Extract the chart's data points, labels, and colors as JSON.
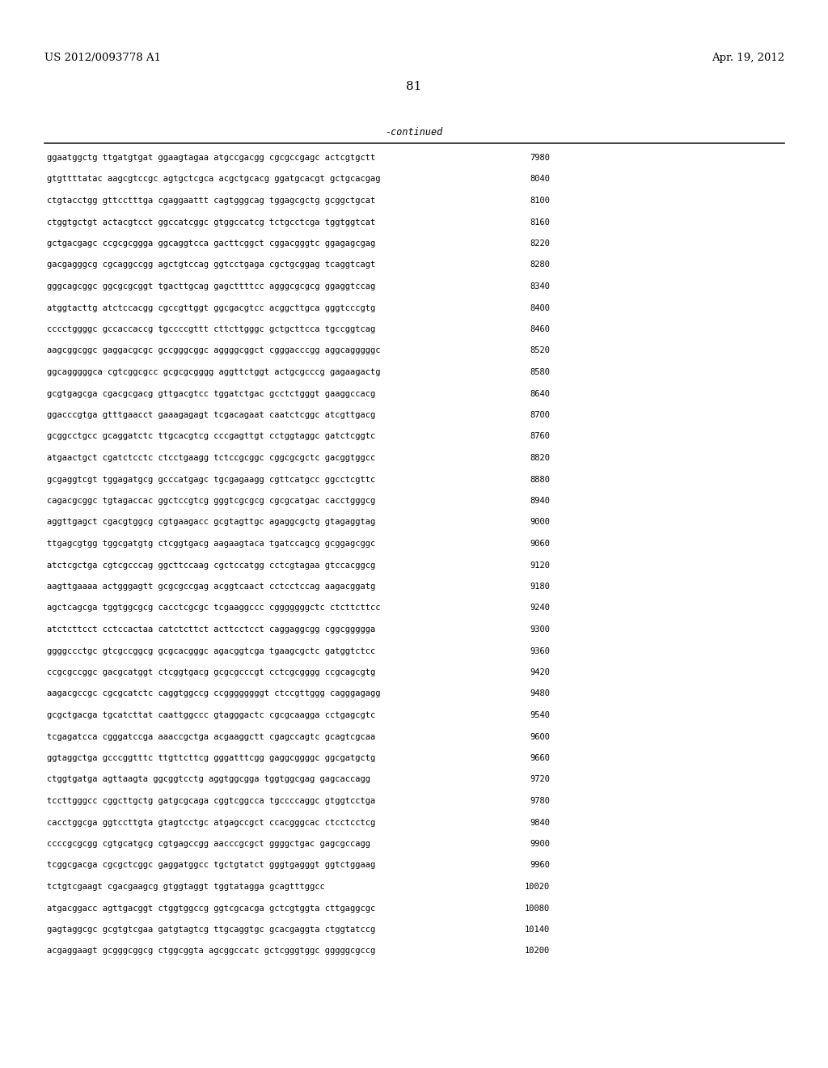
{
  "header_left": "US 2012/0093778 A1",
  "header_right": "Apr. 19, 2012",
  "page_number": "81",
  "continued_label": "-continued",
  "background_color": "#ffffff",
  "text_color": "#000000",
  "font_size": 7.5,
  "header_font_size": 9.5,
  "page_num_font_size": 11,
  "sequences": [
    [
      "ggaatggctg ttgatgtgat ggaagtagaa atgccgacgg cgcgccgagc actcgtgctt",
      "7980"
    ],
    [
      "gtgttttatac aagcgtccgc agtgctcgca acgctgcacg ggatgcacgt gctgcacgag",
      "8040"
    ],
    [
      "ctgtacctgg gttcctttga cgaggaattt cagtgggcag tggagcgctg gcggctgcat",
      "8100"
    ],
    [
      "ctggtgctgt actacgtcct ggccatcggc gtggccatcg tctgcctcga tggtggtcat",
      "8160"
    ],
    [
      "gctgacgagc ccgcgcggga ggcaggtcca gacttcggct cggacgggtc ggagagcgag",
      "8220"
    ],
    [
      "gacgagggcg cgcaggccgg agctgtccag ggtcctgaga cgctgcggag tcaggtcagt",
      "8280"
    ],
    [
      "gggcagcggc ggcgcgcggt tgacttgcag gagcttttcc agggcgcgcg ggaggtccag",
      "8340"
    ],
    [
      "atggtacttg atctccacgg cgccgttggt ggcgacgtcc acggcttgca gggtcccgtg",
      "8400"
    ],
    [
      "cccctggggc gccaccaccg tgccccgttt cttcttgggc gctgcttcca tgccggtcag",
      "8460"
    ],
    [
      "aagcggcggc gaggacgcgc gccgggcggc aggggcggct cgggacccgg aggcagggggc",
      "8520"
    ],
    [
      "ggcagggggca cgtcggcgcc gcgcgcgggg aggttctggt actgcgcccg gagaagactg",
      "8580"
    ],
    [
      "gcgtgagcga cgacgcgacg gttgacgtcc tggatctgac gcctctgggt gaaggccacg",
      "8640"
    ],
    [
      "ggacccgtga gtttgaacct gaaagagagt tcgacagaat caatctcggc atcgttgacg",
      "8700"
    ],
    [
      "gcggcctgcc gcaggatctc ttgcacgtcg cccgagttgt cctggtaggc gatctcggtc",
      "8760"
    ],
    [
      "atgaactgct cgatctcctc ctcctgaagg tctccgcggc cggcgcgctc gacggtggcc",
      "8820"
    ],
    [
      "gcgaggtcgt tggagatgcg gcccatgagc tgcgagaagg cgttcatgcc ggcctcgttc",
      "8880"
    ],
    [
      "cagacgcggc tgtagaccac ggctccgtcg gggtcgcgcg cgcgcatgac cacctgggcg",
      "8940"
    ],
    [
      "aggttgagct cgacgtggcg cgtgaagacc gcgtagttgc agaggcgctg gtagaggtag",
      "9000"
    ],
    [
      "ttgagcgtgg tggcgatgtg ctcggtgacg aagaagtaca tgatccagcg gcggagcggc",
      "9060"
    ],
    [
      "atctcgctga cgtcgcccag ggcttccaag cgctccatgg cctcgtagaa gtccacggcg",
      "9120"
    ],
    [
      "aagttgaaaa actgggagtt gcgcgccgag acggtcaact cctcctccag aagacggatg",
      "9180"
    ],
    [
      "agctcagcga tggtggcgcg cacctcgcgc tcgaaggccc cgggggggctc ctcttcttcc",
      "9240"
    ],
    [
      "atctcttcct cctccactaa catctcttct acttcctcct caggaggcgg cggcggggga",
      "9300"
    ],
    [
      "ggggccctgc gtcgccggcg gcgcacgggc agacggtcga tgaagcgctc gatggtctcc",
      "9360"
    ],
    [
      "ccgcgccggc gacgcatggt ctcggtgacg gcgcgcccgt cctcgcgggg ccgcagcgtg",
      "9420"
    ],
    [
      "aagacgccgc cgcgcatctc caggtggccg ccggggggggt ctccgttggg cagggagagg",
      "9480"
    ],
    [
      "gcgctgacga tgcatcttat caattggccc gtagggactc cgcgcaagga cctgagcgtc",
      "9540"
    ],
    [
      "tcgagatcca cgggatccga aaaccgctga acgaaggctt cgagccagtc gcagtcgcaa",
      "9600"
    ],
    [
      "ggtaggctga gcccggtttc ttgttcttcg gggatttcgg gaggcggggc ggcgatgctg",
      "9660"
    ],
    [
      "ctggtgatga agttaagta ggcggtcctg aggtggcgga tggtggcgag gagcaccagg",
      "9720"
    ],
    [
      "tccttgggcc cggcttgctg gatgcgcaga cggtcggcca tgccccaggc gtggtcctga",
      "9780"
    ],
    [
      "cacctggcga ggtccttgta gtagtcctgc atgagccgct ccacgggcac ctcctcctcg",
      "9840"
    ],
    [
      "ccccgcgcgg cgtgcatgcg cgtgagccgg aacccgcgct ggggctgac gagcgccagg",
      "9900"
    ],
    [
      "tcggcgacga cgcgctcggc gaggatggcc tgctgtatct gggtgagggt ggtctggaag",
      "9960"
    ],
    [
      "tctgtcgaagt cgacgaagcg gtggtaggt tggtatagga gcagtttggcc",
      "10020"
    ],
    [
      "atgacggacc agttgacggt ctggtggccg ggtcgcacga gctcgtggta cttgaggcgc",
      "10080"
    ],
    [
      "gagtaggcgc gcgtgtcgaa gatgtagtcg ttgcaggtgc gcacgaggta ctggtatccg",
      "10140"
    ],
    [
      "acgaggaagt gcgggcggcg ctggcggta agcggccatc gctcgggtggc gggggcgccg",
      "10200"
    ]
  ]
}
